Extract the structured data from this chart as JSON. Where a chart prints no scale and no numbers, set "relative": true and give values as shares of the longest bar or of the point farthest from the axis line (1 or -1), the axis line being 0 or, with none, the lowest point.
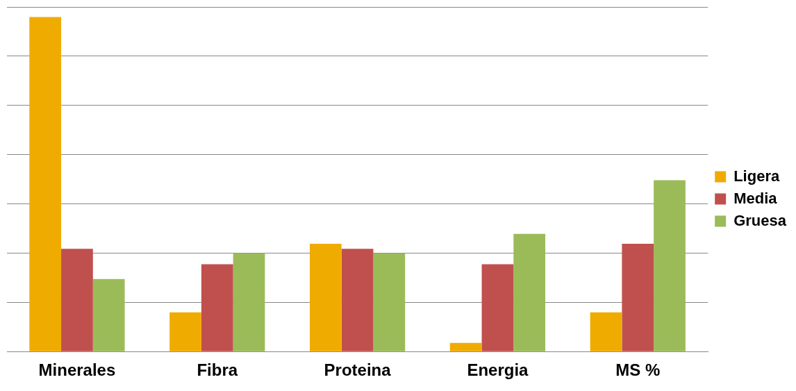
{
  "chart_data": {
    "type": "bar",
    "relative": true,
    "categories": [
      "Minerales",
      "Fibra",
      "Proteina",
      "Energia",
      "MS %"
    ],
    "series": [
      {
        "name": "Ligera",
        "color": "#f0ab00",
        "values": [
          1,
          0.117,
          0.322,
          0.026,
          0.117
        ]
      },
      {
        "name": "Media",
        "color": "#c0504d",
        "values": [
          0.307,
          0.261,
          0.307,
          0.261,
          0.322
        ]
      },
      {
        "name": "Gruesa",
        "color": "#9bbb59",
        "values": [
          0.217,
          0.294,
          0.294,
          0.352,
          0.512
        ]
      }
    ],
    "grid": "y",
    "legend": "right"
  }
}
